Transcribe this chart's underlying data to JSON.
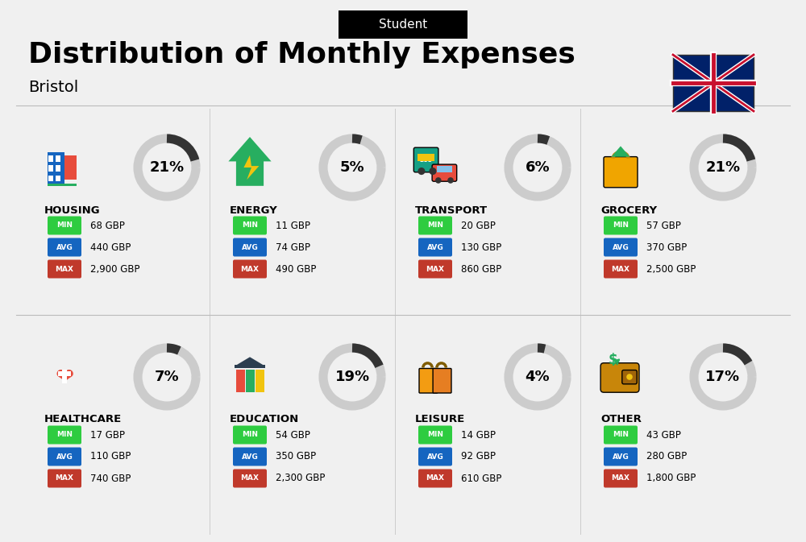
{
  "title": "Distribution of Monthly Expenses",
  "subtitle": "Bristol",
  "label_top": "Student",
  "background_color": "#f0f0f0",
  "categories": [
    {
      "name": "HOUSING",
      "pct": 21,
      "min_val": "68 GBP",
      "avg_val": "440 GBP",
      "max_val": "2,900 GBP",
      "icon": "housing",
      "row": 0,
      "col": 0
    },
    {
      "name": "ENERGY",
      "pct": 5,
      "min_val": "11 GBP",
      "avg_val": "74 GBP",
      "max_val": "490 GBP",
      "icon": "energy",
      "row": 0,
      "col": 1
    },
    {
      "name": "TRANSPORT",
      "pct": 6,
      "min_val": "20 GBP",
      "avg_val": "130 GBP",
      "max_val": "860 GBP",
      "icon": "transport",
      "row": 0,
      "col": 2
    },
    {
      "name": "GROCERY",
      "pct": 21,
      "min_val": "57 GBP",
      "avg_val": "370 GBP",
      "max_val": "2,500 GBP",
      "icon": "grocery",
      "row": 0,
      "col": 3
    },
    {
      "name": "HEALTHCARE",
      "pct": 7,
      "min_val": "17 GBP",
      "avg_val": "110 GBP",
      "max_val": "740 GBP",
      "icon": "healthcare",
      "row": 1,
      "col": 0
    },
    {
      "name": "EDUCATION",
      "pct": 19,
      "min_val": "54 GBP",
      "avg_val": "350 GBP",
      "max_val": "2,300 GBP",
      "icon": "education",
      "row": 1,
      "col": 1
    },
    {
      "name": "LEISURE",
      "pct": 4,
      "min_val": "14 GBP",
      "avg_val": "92 GBP",
      "max_val": "610 GBP",
      "icon": "leisure",
      "row": 1,
      "col": 2
    },
    {
      "name": "OTHER",
      "pct": 17,
      "min_val": "43 GBP",
      "avg_val": "280 GBP",
      "max_val": "1,800 GBP",
      "icon": "other",
      "row": 1,
      "col": 3
    }
  ],
  "color_min": "#2ecc40",
  "color_avg": "#1565c0",
  "color_max": "#c0392b",
  "arc_color": "#333333",
  "arc_bg_color": "#cccccc",
  "text_color": "#111111"
}
